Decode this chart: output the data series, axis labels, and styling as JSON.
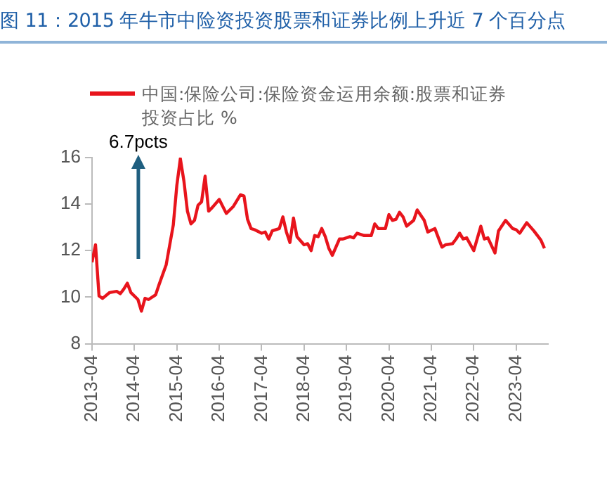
{
  "chart_data": {
    "type": "line",
    "title": "图 11：2015 年牛市中险资投资股票和证券比例上升近 7 个百分点",
    "x": [
      "2013-04",
      "2013-05",
      "2013-06",
      "2013-07",
      "2013-09",
      "2013-11",
      "2013-12",
      "2014-01",
      "2014-02",
      "2014-03",
      "2014-05",
      "2014-06",
      "2014-07",
      "2014-08",
      "2014-10",
      "2014-11",
      "2015-01",
      "2015-03",
      "2015-04",
      "2015-05",
      "2015-06",
      "2015-07",
      "2015-08",
      "2015-09",
      "2015-10",
      "2015-11",
      "2015-12",
      "2016-01",
      "2016-02",
      "2016-04",
      "2016-06",
      "2016-08",
      "2016-10",
      "2016-11",
      "2016-12",
      "2017-01",
      "2017-02",
      "2017-04",
      "2017-05",
      "2017-06",
      "2017-07",
      "2017-09",
      "2017-10",
      "2017-11",
      "2017-12",
      "2018-01",
      "2018-02",
      "2018-04",
      "2018-05",
      "2018-06",
      "2018-07",
      "2018-08",
      "2018-09",
      "2018-10",
      "2018-11",
      "2018-12",
      "2019-02",
      "2019-03",
      "2019-05",
      "2019-06",
      "2019-07",
      "2019-09",
      "2019-11",
      "2019-12",
      "2020-01",
      "2020-03",
      "2020-04",
      "2020-05",
      "2020-06",
      "2020-07",
      "2020-08",
      "2020-09",
      "2020-11",
      "2020-12",
      "2021-02",
      "2021-03",
      "2021-05",
      "2021-07",
      "2021-08",
      "2021-10",
      "2021-11",
      "2021-12",
      "2022-01",
      "2022-02",
      "2022-04",
      "2022-06",
      "2022-07",
      "2022-08",
      "2022-10",
      "2022-11",
      "2023-01",
      "2023-03",
      "2023-04",
      "2023-05",
      "2023-07",
      "2023-09",
      "2023-11",
      "2023-12"
    ],
    "series": [
      {
        "name": "中国:保险公司:保险资金运用余额:股票和证券投资占比 %",
        "color": "#e8141c",
        "values": [
          11.5,
          12.25,
          10.05,
          9.95,
          10.2,
          10.25,
          10.15,
          10.35,
          10.6,
          10.2,
          9.9,
          9.4,
          9.95,
          9.9,
          10.1,
          10.55,
          11.4,
          13.1,
          14.8,
          15.95,
          15.0,
          13.7,
          13.15,
          13.3,
          13.95,
          14.1,
          15.2,
          13.7,
          13.85,
          14.2,
          13.6,
          13.9,
          14.4,
          14.35,
          13.35,
          12.95,
          12.9,
          12.75,
          12.8,
          12.5,
          12.85,
          12.95,
          13.45,
          12.8,
          12.35,
          13.4,
          12.6,
          12.25,
          12.3,
          12.0,
          12.65,
          12.6,
          12.95,
          12.6,
          12.1,
          11.8,
          12.5,
          12.5,
          12.6,
          12.55,
          12.75,
          12.65,
          12.65,
          13.15,
          12.95,
          12.95,
          13.55,
          13.3,
          13.35,
          13.65,
          13.45,
          13.05,
          13.3,
          13.75,
          13.3,
          12.8,
          12.95,
          12.15,
          12.25,
          12.3,
          12.5,
          12.75,
          12.5,
          12.55,
          12.0,
          13.05,
          12.5,
          12.55,
          11.9,
          12.85,
          13.3,
          12.95,
          12.9,
          12.75,
          13.2,
          12.85,
          12.45,
          12.1
        ]
      }
    ],
    "xlim": [
      "2013-04",
      "2024-01"
    ],
    "xticks": [
      "2013-04",
      "2014-04",
      "2015-04",
      "2016-04",
      "2017-04",
      "2018-04",
      "2019-04",
      "2020-04",
      "2021-04",
      "2022-04",
      "2023-04"
    ],
    "ylim": [
      8,
      16
    ],
    "yticks": [
      8,
      10,
      12,
      14,
      16
    ],
    "annotations": [
      "6.7pcts"
    ],
    "legend": "top left",
    "grid": false,
    "marker": "none",
    "line_style": "solid"
  }
}
